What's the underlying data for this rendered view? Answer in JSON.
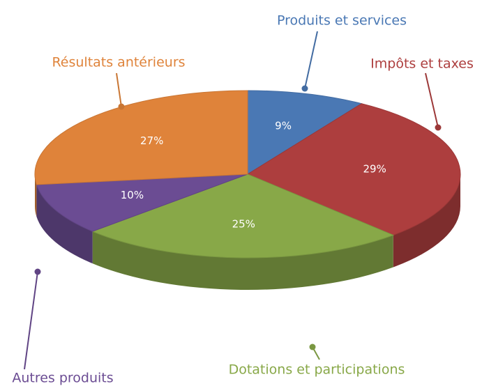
{
  "chart_data": {
    "type": "pie",
    "categories": [
      "Produits et services",
      "Impôts et taxes",
      "Dotations et participations",
      "Autres produits",
      "Résultats antérieurs"
    ],
    "values": [
      9,
      29,
      25,
      10,
      27
    ],
    "value_labels": [
      "9%",
      "29%",
      "25%",
      "10%",
      "27%"
    ],
    "colors": [
      "#4a78b4",
      "#ad3e3e",
      "#88a848",
      "#6b4c93",
      "#df833a"
    ]
  }
}
